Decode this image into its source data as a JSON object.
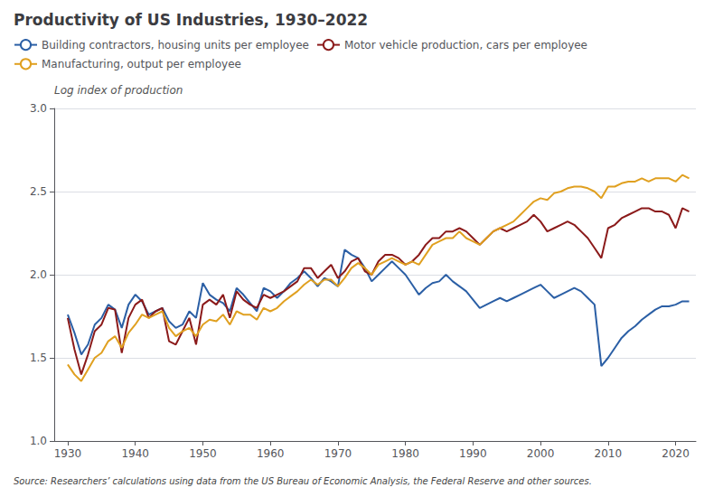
{
  "chart_data": {
    "type": "line",
    "title": "Productivity of US Industries, 1930–2022",
    "ylabel": "Log index of production",
    "annotations": [
      "Source: Researchers’ calculations using data from the US Bureau of Economic Analysis, the Federal Reserve and other sources."
    ],
    "x": [
      1930,
      1931,
      1932,
      1933,
      1934,
      1935,
      1936,
      1937,
      1938,
      1939,
      1940,
      1941,
      1942,
      1943,
      1944,
      1945,
      1946,
      1947,
      1948,
      1949,
      1950,
      1951,
      1952,
      1953,
      1954,
      1955,
      1956,
      1957,
      1958,
      1959,
      1960,
      1961,
      1962,
      1963,
      1964,
      1965,
      1966,
      1967,
      1968,
      1969,
      1970,
      1971,
      1972,
      1973,
      1974,
      1975,
      1976,
      1977,
      1978,
      1979,
      1980,
      1981,
      1982,
      1983,
      1984,
      1985,
      1986,
      1987,
      1988,
      1989,
      1990,
      1991,
      1992,
      1993,
      1994,
      1995,
      1996,
      1997,
      1998,
      1999,
      2000,
      2001,
      2002,
      2003,
      2004,
      2005,
      2006,
      2007,
      2008,
      2009,
      2010,
      2011,
      2012,
      2013,
      2014,
      2015,
      2016,
      2017,
      2018,
      2019,
      2020,
      2021,
      2022
    ],
    "series": [
      {
        "name": "Building contractors, housing units per employee",
        "color": "#2b5fa5",
        "values": [
          1.76,
          1.65,
          1.52,
          1.58,
          1.7,
          1.74,
          1.82,
          1.79,
          1.68,
          1.82,
          1.88,
          1.84,
          1.76,
          1.78,
          1.8,
          1.72,
          1.68,
          1.7,
          1.78,
          1.74,
          1.95,
          1.88,
          1.85,
          1.83,
          1.78,
          1.92,
          1.88,
          1.83,
          1.78,
          1.92,
          1.9,
          1.86,
          1.9,
          1.95,
          1.98,
          2.02,
          1.98,
          1.93,
          1.98,
          1.96,
          1.93,
          2.15,
          2.12,
          2.1,
          2.04,
          1.96,
          2.0,
          2.04,
          2.08,
          2.04,
          2.0,
          1.94,
          1.88,
          1.92,
          1.95,
          1.96,
          2.0,
          1.96,
          1.93,
          1.9,
          1.85,
          1.8,
          1.82,
          1.84,
          1.86,
          1.84,
          1.86,
          1.88,
          1.9,
          1.92,
          1.94,
          1.9,
          1.86,
          1.88,
          1.9,
          1.92,
          1.9,
          1.86,
          1.82,
          1.45,
          1.5,
          1.56,
          1.62,
          1.66,
          1.69,
          1.73,
          1.76,
          1.79,
          1.81,
          1.81,
          1.82,
          1.84,
          1.84
        ]
      },
      {
        "name": "Motor vehicle production, cars per employee",
        "color": "#8b1a1a",
        "values": [
          1.74,
          1.55,
          1.4,
          1.52,
          1.66,
          1.7,
          1.8,
          1.79,
          1.53,
          1.74,
          1.82,
          1.85,
          1.74,
          1.78,
          1.8,
          1.6,
          1.58,
          1.66,
          1.74,
          1.58,
          1.82,
          1.85,
          1.82,
          1.88,
          1.74,
          1.9,
          1.85,
          1.82,
          1.8,
          1.88,
          1.86,
          1.88,
          1.9,
          1.93,
          1.96,
          2.04,
          2.04,
          1.98,
          2.02,
          2.06,
          1.98,
          2.02,
          2.08,
          2.1,
          2.02,
          2.0,
          2.08,
          2.12,
          2.12,
          2.1,
          2.06,
          2.08,
          2.12,
          2.18,
          2.22,
          2.22,
          2.26,
          2.26,
          2.28,
          2.26,
          2.22,
          2.18,
          2.22,
          2.26,
          2.28,
          2.26,
          2.28,
          2.3,
          2.32,
          2.36,
          2.32,
          2.26,
          2.28,
          2.3,
          2.32,
          2.3,
          2.26,
          2.22,
          2.16,
          2.1,
          2.28,
          2.3,
          2.34,
          2.36,
          2.38,
          2.4,
          2.4,
          2.38,
          2.38,
          2.36,
          2.28,
          2.4,
          2.38
        ]
      },
      {
        "name": "Manufacturing, output per employee",
        "color": "#e0a020",
        "values": [
          1.46,
          1.4,
          1.36,
          1.43,
          1.5,
          1.53,
          1.6,
          1.63,
          1.56,
          1.65,
          1.7,
          1.76,
          1.74,
          1.76,
          1.78,
          1.68,
          1.63,
          1.66,
          1.68,
          1.63,
          1.7,
          1.73,
          1.72,
          1.76,
          1.7,
          1.78,
          1.76,
          1.76,
          1.73,
          1.8,
          1.78,
          1.8,
          1.84,
          1.87,
          1.9,
          1.94,
          1.97,
          1.94,
          1.97,
          1.97,
          1.93,
          1.98,
          2.04,
          2.07,
          2.04,
          2.0,
          2.06,
          2.08,
          2.1,
          2.08,
          2.06,
          2.08,
          2.06,
          2.12,
          2.18,
          2.2,
          2.22,
          2.22,
          2.26,
          2.22,
          2.2,
          2.18,
          2.22,
          2.26,
          2.28,
          2.3,
          2.32,
          2.36,
          2.4,
          2.44,
          2.46,
          2.45,
          2.49,
          2.5,
          2.52,
          2.53,
          2.53,
          2.52,
          2.5,
          2.46,
          2.53,
          2.53,
          2.55,
          2.56,
          2.56,
          2.58,
          2.56,
          2.58,
          2.58,
          2.58,
          2.56,
          2.6,
          2.58
        ]
      }
    ],
    "xlim": [
      1928,
      2023
    ],
    "xticks": [
      1930,
      1940,
      1950,
      1960,
      1970,
      1980,
      1990,
      2000,
      2010,
      2020
    ],
    "ylim": [
      1.0,
      3.0
    ],
    "yticks": [
      {
        "value": 1.0,
        "label": "1.0"
      },
      1.5,
      {
        "value": 2.0,
        "label": "2.0"
      },
      2.5,
      {
        "value": 3.0,
        "label": "3.0"
      }
    ],
    "grid": true,
    "legend": "upper left"
  }
}
